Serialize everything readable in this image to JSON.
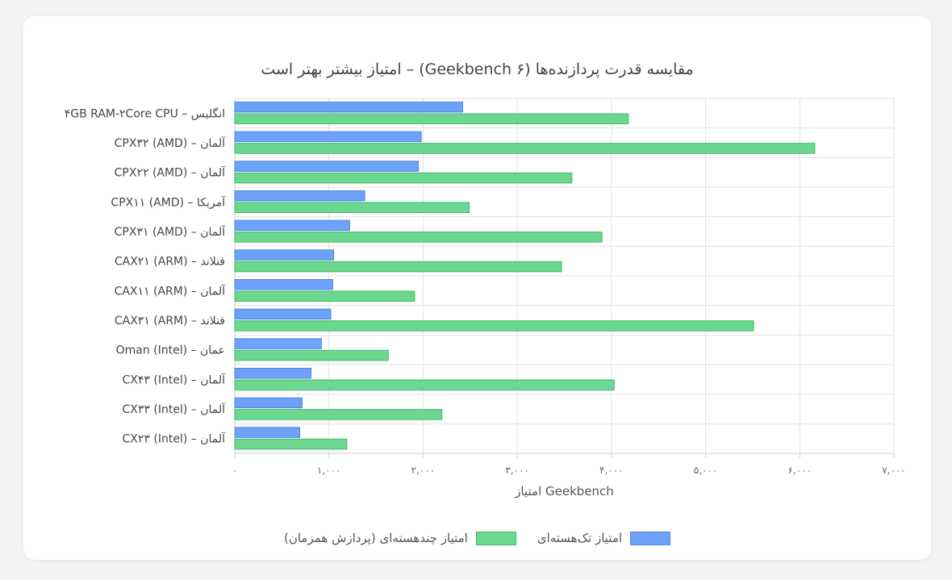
{
  "chart_data": {
    "type": "bar",
    "orientation": "horizontal",
    "title": "مقایسه قدرت پردازنده‌ها (Geekbench ۶) – امتیاز بیشتر بهتر است",
    "xlabel": "امتیاز Geekbench",
    "ylabel": "",
    "xlim": [
      0,
      7000
    ],
    "xticks": [
      0,
      1000,
      2000,
      3000,
      4000,
      5000,
      6000,
      7000
    ],
    "xtick_labels": [
      "۰",
      "۱,۰۰۰",
      "۲,۰۰۰",
      "۳,۰۰۰",
      "۴,۰۰۰",
      "۵,۰۰۰",
      "۶,۰۰۰",
      "۷,۰۰۰"
    ],
    "grid": true,
    "legend_position": "bottom",
    "categories": [
      "۴GB RAM-۲Core CPU – انگلیس",
      "CPX۳۲ (AMD) – آلمان",
      "CPX۲۲ (AMD) – آلمان",
      "CPX۱۱ (AMD) – آمریکا",
      "CPX۳۱ (AMD) – آلمان",
      "CAX۲۱ (ARM) – فنلاند",
      "CAX۱۱ (ARM) – آلمان",
      "CAX۳۱ (ARM) – فنلاند",
      "Oman (Intel) – عمان",
      "CX۴۳ (Intel) – آلمان",
      "CX۳۳ (Intel) – آلمان",
      "CX۲۳ (Intel) – آلمان"
    ],
    "series": [
      {
        "name": "امتیاز تک‌هسته‌ای",
        "color": "#6ea2f8",
        "border": "#4f86e6",
        "values": [
          2420,
          1980,
          1950,
          1380,
          1220,
          1050,
          1040,
          1020,
          920,
          810,
          715,
          690
        ]
      },
      {
        "name": "امتیاز چندهسته‌ای (پردازش همزمان)",
        "color": "#6cd88f",
        "border": "#3dbb69",
        "values": [
          4180,
          6160,
          3580,
          2490,
          3900,
          3470,
          1910,
          5510,
          1630,
          4030,
          2200,
          1190
        ]
      }
    ]
  }
}
